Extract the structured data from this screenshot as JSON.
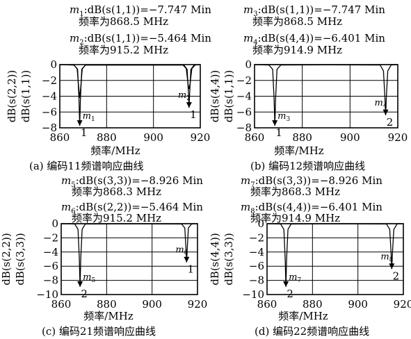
{
  "chart_data": [
    {
      "type": "line",
      "caption": "(a) 编码11频谱响应曲线",
      "markers": [
        {
          "name": "m1",
          "label_sub": "1",
          "line1": ":dB(s(1,1))=−7.747 Min",
          "line2": "频率为868.5 MHz",
          "x": 868.5,
          "y": -7.747,
          "bottom_label": "1"
        },
        {
          "name": "m2",
          "label_sub": "2",
          "line1": ":dB(s(1,1))=−5.464 Min",
          "line2": "频率为915.2 MHz",
          "x": 915.2,
          "y": -5.464,
          "bottom_label": "1"
        }
      ],
      "ylabel_lines": [
        "dB(s(2,2))",
        "dB(s(1,1))"
      ],
      "xlabel": "频率/MHz",
      "xlim": [
        860,
        920
      ],
      "ylim": [
        -8,
        0
      ],
      "xticks": [
        860,
        880,
        900,
        920
      ],
      "yticks": [
        0,
        -2,
        -4,
        -6,
        -8
      ],
      "series": [
        {
          "points": [
            [
              860,
              0
            ],
            [
              866,
              -0.05
            ],
            [
              867.6,
              -0.6
            ],
            [
              868.2,
              -4.5
            ],
            [
              868.5,
              -7.747
            ],
            [
              868.8,
              -4.5
            ],
            [
              869.4,
              -0.6
            ],
            [
              871,
              -0.05
            ],
            [
              913,
              -0.05
            ],
            [
              914.4,
              -0.6
            ],
            [
              915,
              -4
            ],
            [
              915.2,
              -5.464
            ],
            [
              915.4,
              -4
            ],
            [
              916,
              -0.6
            ],
            [
              917.4,
              -0.05
            ],
            [
              920,
              0
            ]
          ]
        },
        {
          "points": [
            [
              860,
              0
            ],
            [
              866,
              -0.05
            ],
            [
              867.4,
              -0.5
            ],
            [
              868.1,
              -3
            ],
            [
              868.5,
              -4.2
            ],
            [
              868.9,
              -3
            ],
            [
              869.6,
              -0.5
            ],
            [
              871,
              -0.05
            ],
            [
              912.6,
              -0.05
            ],
            [
              914,
              -0.5
            ],
            [
              914.8,
              -2.5
            ],
            [
              915.2,
              -3.1
            ],
            [
              915.6,
              -2.5
            ],
            [
              916.4,
              -0.5
            ],
            [
              917.8,
              -0.05
            ],
            [
              920,
              0
            ]
          ]
        }
      ]
    },
    {
      "type": "line",
      "caption": "(b) 编码12频谱响应曲线",
      "markers": [
        {
          "name": "m3",
          "label_sub": "3",
          "line1": ":dB(s(1,1))=−7.747 Min",
          "line2": "频率为868.5 MHz",
          "x": 868.5,
          "y": -7.747,
          "bottom_label": "1"
        },
        {
          "name": "m4",
          "label_sub": "4",
          "line1": ":dB(s(4,4))=−6.401 Min",
          "line2": "频率为914.9 MHz",
          "x": 914.9,
          "y": -6.401,
          "bottom_label": "2"
        }
      ],
      "ylabel_lines": [
        "dB(s(4,4))",
        "dB(s(1,1))"
      ],
      "xlabel": "频率/MHz",
      "xlim": [
        860,
        920
      ],
      "ylim": [
        -8,
        0
      ],
      "xticks": [
        860,
        880,
        900,
        920
      ],
      "yticks": [
        0,
        -2,
        -4,
        -6,
        -8
      ],
      "series": [
        {
          "points": [
            [
              860,
              0
            ],
            [
              866,
              -0.05
            ],
            [
              867.6,
              -0.6
            ],
            [
              868.2,
              -4.5
            ],
            [
              868.5,
              -7.747
            ],
            [
              868.8,
              -4.5
            ],
            [
              869.4,
              -0.6
            ],
            [
              871,
              -0.05
            ],
            [
              920,
              0
            ]
          ]
        },
        {
          "points": [
            [
              860,
              0
            ],
            [
              912.6,
              -0.05
            ],
            [
              914,
              -0.8
            ],
            [
              914.6,
              -4.2
            ],
            [
              914.9,
              -6.401
            ],
            [
              915.2,
              -4.2
            ],
            [
              915.8,
              -0.8
            ],
            [
              917.2,
              -0.05
            ],
            [
              920,
              0
            ]
          ]
        }
      ]
    },
    {
      "type": "line",
      "caption": "(c) 编码21频谱响应曲线",
      "markers": [
        {
          "name": "m5",
          "label_sub": "5",
          "line1": ":dB(s(3,3))=−8.926 Min",
          "line2": "频率为868.3 MHz",
          "x": 868.3,
          "y": -8.926,
          "bottom_label": "2"
        },
        {
          "name": "m6",
          "label_sub": "6",
          "line1": ":dB(s(2,2))=−5.464 Min",
          "line2": "频率为915.2 MHz",
          "x": 915.2,
          "y": -5.464,
          "bottom_label": "1"
        }
      ],
      "ylabel_lines": [
        "dB(s(2,2))",
        "dB(s(3,3))"
      ],
      "xlabel": "频率/MHz",
      "xlim": [
        860,
        920
      ],
      "ylim": [
        -10,
        0
      ],
      "xticks": [
        860,
        880,
        900,
        920
      ],
      "yticks": [
        0,
        -2,
        -4,
        -6,
        -8,
        -10
      ],
      "series": [
        {
          "points": [
            [
              860,
              0
            ],
            [
              866,
              -0.05
            ],
            [
              867.4,
              -0.8
            ],
            [
              868,
              -5
            ],
            [
              868.3,
              -8.926
            ],
            [
              868.6,
              -5
            ],
            [
              869.2,
              -0.8
            ],
            [
              870.6,
              -0.05
            ],
            [
              920,
              0
            ]
          ]
        },
        {
          "points": [
            [
              860,
              0
            ],
            [
              913,
              -0.05
            ],
            [
              914.4,
              -0.6
            ],
            [
              915,
              -4
            ],
            [
              915.2,
              -5.464
            ],
            [
              915.4,
              -4
            ],
            [
              916,
              -0.6
            ],
            [
              917.4,
              -0.05
            ],
            [
              920,
              0
            ]
          ]
        }
      ]
    },
    {
      "type": "line",
      "caption": "(d) 编码22频谱响应曲线",
      "markers": [
        {
          "name": "m7",
          "label_sub": "7",
          "line1": ":dB(s(3,3))=−8.926 Min",
          "line2": "频率为868.3 MHz",
          "x": 868.3,
          "y": -8.926,
          "bottom_label": "2"
        },
        {
          "name": "m8",
          "label_sub": "8",
          "line1": ":dB(s(4,4))=−6.401 Min",
          "line2": "频率为914.9 MHz",
          "x": 914.9,
          "y": -6.401,
          "bottom_label": "2"
        }
      ],
      "ylabel_lines": [
        "dB(s(4,4))",
        "dB(s(3,3))"
      ],
      "xlabel": "频率/MHz",
      "xlim": [
        860,
        920
      ],
      "ylim": [
        -10,
        0
      ],
      "xticks": [
        860,
        880,
        900,
        920
      ],
      "yticks": [
        0,
        -2,
        -4,
        -6,
        -8,
        -10
      ],
      "series": [
        {
          "points": [
            [
              860,
              0
            ],
            [
              866,
              -0.05
            ],
            [
              867.4,
              -0.8
            ],
            [
              868,
              -5
            ],
            [
              868.3,
              -8.926
            ],
            [
              868.6,
              -5
            ],
            [
              869.2,
              -0.8
            ],
            [
              870.6,
              -0.05
            ],
            [
              920,
              0
            ]
          ]
        },
        {
          "points": [
            [
              860,
              0
            ],
            [
              912.6,
              -0.05
            ],
            [
              914,
              -0.8
            ],
            [
              914.6,
              -4.2
            ],
            [
              914.9,
              -6.401
            ],
            [
              915.2,
              -4.2
            ],
            [
              915.8,
              -0.8
            ],
            [
              917.2,
              -0.05
            ],
            [
              920,
              0
            ]
          ]
        }
      ]
    }
  ]
}
